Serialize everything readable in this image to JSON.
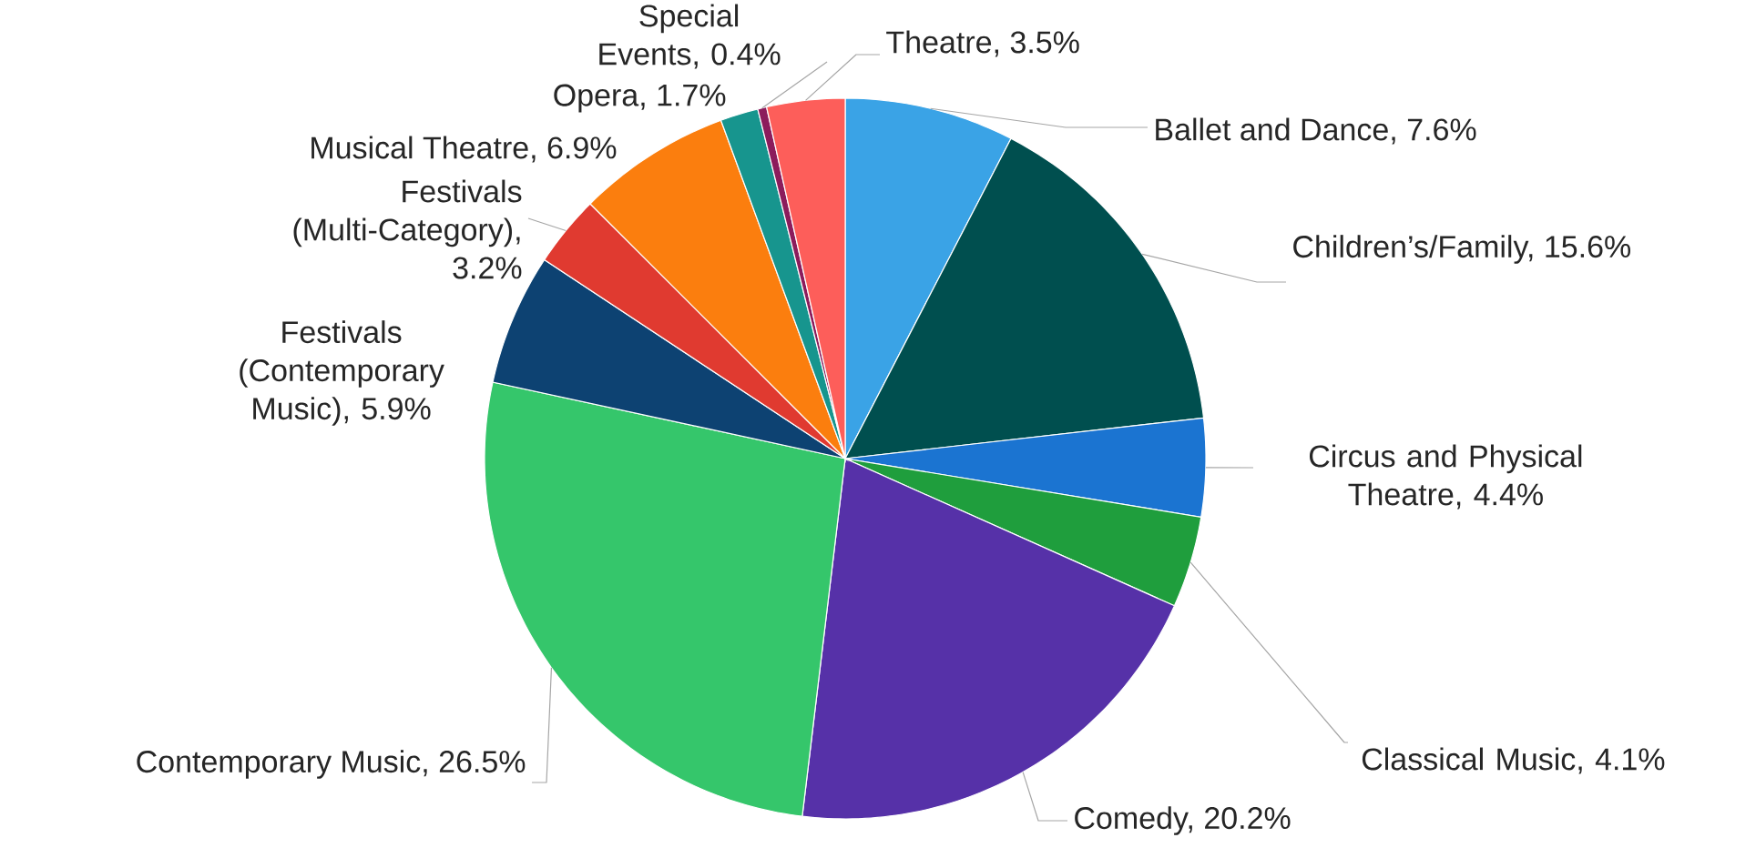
{
  "chart_data": {
    "type": "pie",
    "categories": [
      "Ballet and Dance, 7.6%",
      "Children’s/Family, 15.6%",
      "Circus and Physical Theatre, 4.4%",
      "Classical Music, 4.1%",
      "Comedy, 20.2%",
      "Contemporary Music, 26.5%",
      "Festivals (Contemporary Music), 5.9%",
      "Festivals (Multi-Category), 3.2%",
      "Musical Theatre, 6.9%",
      "Opera, 1.7%",
      "Special Events, 0.4%",
      "Theatre, 3.5%"
    ],
    "values": [
      7.6,
      15.6,
      4.4,
      4.1,
      20.2,
      26.5,
      5.9,
      3.2,
      6.9,
      1.7,
      0.4,
      3.5
    ],
    "colors": [
      "#3aa3e6",
      "#004f4f",
      "#1b74d1",
      "#1f9e3d",
      "#5631a8",
      "#35c66b",
      "#0d4272",
      "#e03a30",
      "#fb7e0e",
      "#17958e",
      "#8c1c5c",
      "#fd5e5a"
    ]
  }
}
